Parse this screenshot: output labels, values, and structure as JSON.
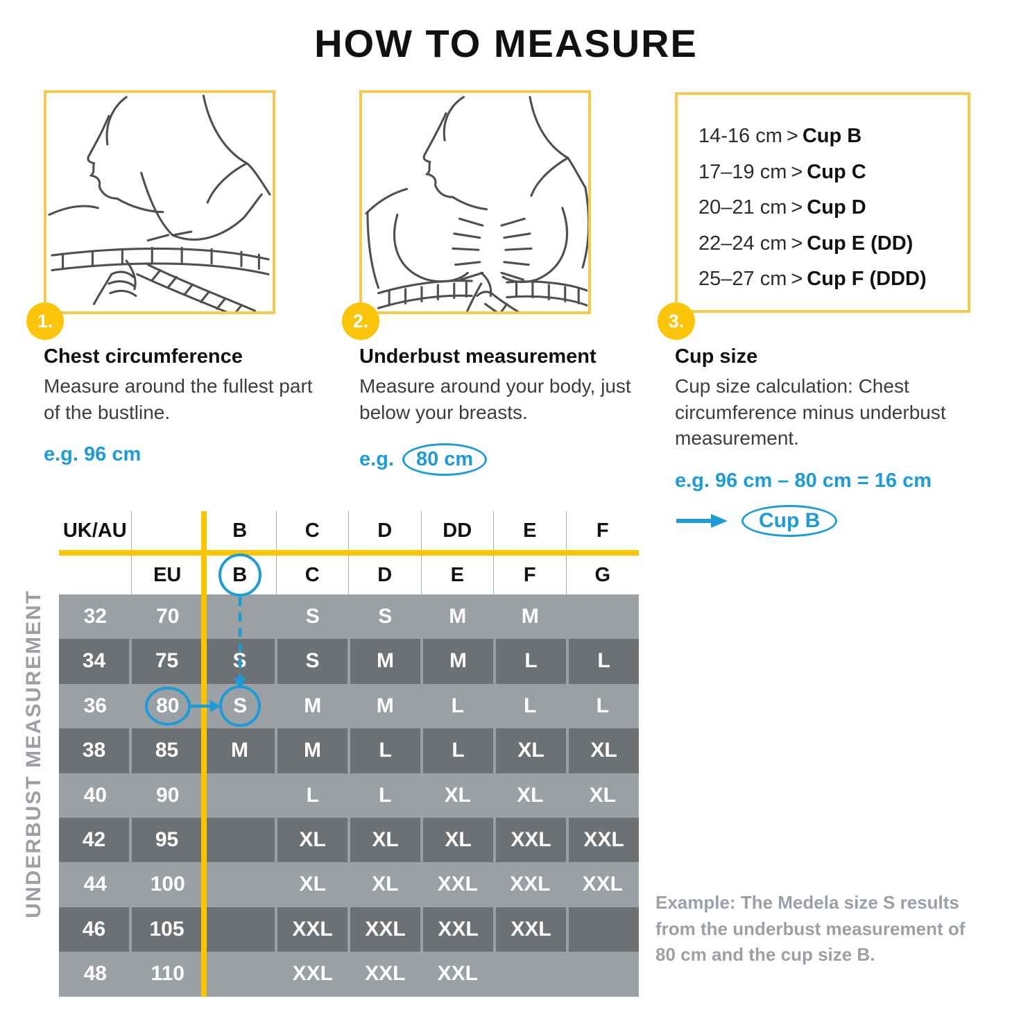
{
  "title": "HOW TO MEASURE",
  "colors": {
    "accent_yellow": "#fdc400",
    "box_border_yellow": "#f3ca4d",
    "badge_yellow": "#fcc408",
    "accent_blue": "#1d9bd7",
    "row_light_gray": "#9ba0a5",
    "row_dark_gray": "#6d7174",
    "muted_text_gray": "#9aa0a5"
  },
  "steps": [
    {
      "number": "1.",
      "heading": "Chest circumference",
      "body": "Measure around the fullest part of the bustline.",
      "example_prefix": "e.g.",
      "example_value": "96 cm"
    },
    {
      "number": "2.",
      "heading": "Underbust measurement",
      "body": "Measure around your body, just below your breasts.",
      "example_prefix": "e.g.",
      "example_value": "80 cm"
    },
    {
      "number": "3.",
      "heading": "Cup size",
      "body": "Cup size calculation: Chest circumference minus underbust measurement.",
      "example_formula": "e.g. 96 cm – 80 cm = 16 cm",
      "example_result": "Cup B"
    }
  ],
  "cup_box": {
    "separator": ">",
    "items": [
      {
        "range": "14-16 cm",
        "cup": "Cup B"
      },
      {
        "range": "17–19 cm",
        "cup": "Cup C"
      },
      {
        "range": "20–21 cm",
        "cup": "Cup D"
      },
      {
        "range": "22–24 cm",
        "cup": "Cup E (DD)"
      },
      {
        "range": "25–27 cm",
        "cup": "Cup F (DDD)"
      }
    ]
  },
  "size_table": {
    "side_label": "UNDERBUST MEASUREMENT",
    "header_row_1": [
      "UK/AU",
      "",
      "B",
      "C",
      "D",
      "DD",
      "E",
      "F"
    ],
    "header_row_2": [
      "",
      "EU",
      "B",
      "C",
      "D",
      "E",
      "F",
      "G"
    ],
    "rows": [
      {
        "uk": "32",
        "eu": "70",
        "cells": [
          "",
          "S",
          "S",
          "M",
          "M",
          ""
        ]
      },
      {
        "uk": "34",
        "eu": "75",
        "cells": [
          "S",
          "S",
          "M",
          "M",
          "L",
          "L"
        ]
      },
      {
        "uk": "36",
        "eu": "80",
        "cells": [
          "S",
          "M",
          "M",
          "L",
          "L",
          "L"
        ]
      },
      {
        "uk": "38",
        "eu": "85",
        "cells": [
          "M",
          "M",
          "L",
          "L",
          "XL",
          "XL"
        ]
      },
      {
        "uk": "40",
        "eu": "90",
        "cells": [
          "",
          "L",
          "L",
          "XL",
          "XL",
          "XL"
        ]
      },
      {
        "uk": "42",
        "eu": "95",
        "cells": [
          "",
          "XL",
          "XL",
          "XL",
          "XXL",
          "XXL"
        ]
      },
      {
        "uk": "44",
        "eu": "100",
        "cells": [
          "",
          "XL",
          "XL",
          "XXL",
          "XXL",
          "XXL"
        ]
      },
      {
        "uk": "46",
        "eu": "105",
        "cells": [
          "",
          "XXL",
          "XXL",
          "XXL",
          "XXL",
          ""
        ]
      },
      {
        "uk": "48",
        "eu": "110",
        "cells": [
          "",
          "XXL",
          "XXL",
          "XXL",
          "",
          ""
        ]
      }
    ],
    "highlight": {
      "header_cup": "B",
      "eu_value": "80",
      "result_size": "S"
    }
  },
  "footnote": "Example: The Medela size S results from the underbust measurement of 80 cm and the cup size B."
}
